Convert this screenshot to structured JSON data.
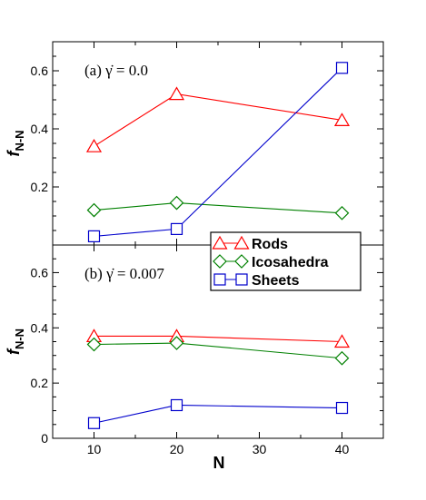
{
  "chart_data": [
    {
      "type": "line",
      "panel_label": "(a) γ̇ = 0.0",
      "x": [
        10,
        20,
        40
      ],
      "xlim": [
        5,
        45
      ],
      "ylim": [
        0,
        0.7
      ],
      "xticks": [
        10,
        20,
        30,
        40
      ],
      "yticks": [
        0.2,
        0.4,
        0.6
      ],
      "ylabel": "f",
      "ylabel_sub": "N-N",
      "series": [
        {
          "name": "Rods",
          "values": [
            0.34,
            0.52,
            0.43
          ],
          "color": "#ff0000",
          "marker": "triangle"
        },
        {
          "name": "Icosahedra",
          "values": [
            0.12,
            0.145,
            0.11
          ],
          "color": "#008000",
          "marker": "diamond"
        },
        {
          "name": "Sheets",
          "values": [
            0.03,
            0.055,
            0.61
          ],
          "color": "#0000cc",
          "marker": "square"
        }
      ]
    },
    {
      "type": "line",
      "panel_label": "(b) γ̇ = 0.007",
      "x": [
        10,
        20,
        40
      ],
      "xlim": [
        5,
        45
      ],
      "ylim": [
        0,
        0.7
      ],
      "xticks": [
        10,
        20,
        30,
        40
      ],
      "yticks": [
        0,
        0.2,
        0.4,
        0.6
      ],
      "xlabel": "N",
      "ylabel": "f",
      "ylabel_sub": "N-N",
      "series": [
        {
          "name": "Rods",
          "values": [
            0.37,
            0.37,
            0.35
          ],
          "color": "#ff0000",
          "marker": "triangle"
        },
        {
          "name": "Icosahedra",
          "values": [
            0.34,
            0.345,
            0.29
          ],
          "color": "#008000",
          "marker": "diamond"
        },
        {
          "name": "Sheets",
          "values": [
            0.055,
            0.12,
            0.11
          ],
          "color": "#0000cc",
          "marker": "square"
        }
      ]
    }
  ],
  "legend": {
    "placement": "upper-right of panel (b)",
    "items": [
      {
        "label": "Rods",
        "color": "#ff0000",
        "marker": "triangle"
      },
      {
        "label": "Icosahedra",
        "color": "#008000",
        "marker": "diamond"
      },
      {
        "label": "Sheets",
        "color": "#0000cc",
        "marker": "square"
      }
    ]
  }
}
